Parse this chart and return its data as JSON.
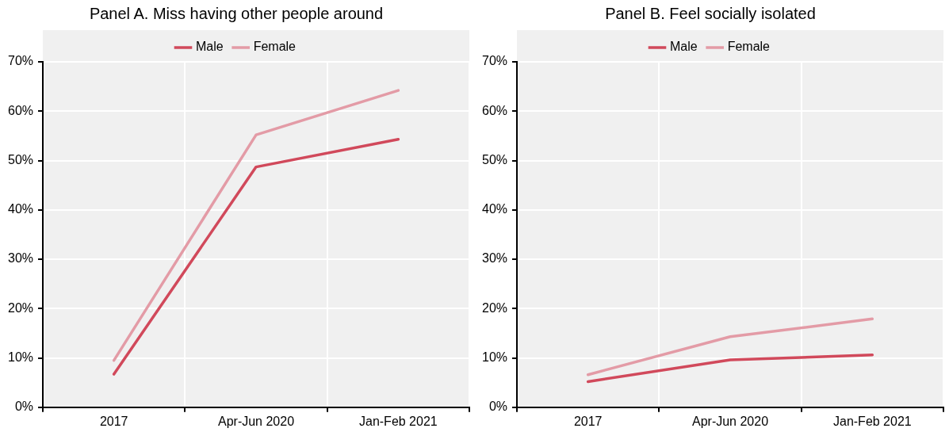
{
  "chart_data": [
    {
      "type": "line",
      "title": "Panel A. Miss having other people around",
      "categories": [
        "2017",
        "Apr-Jun 2020",
        "Jan-Feb 2021"
      ],
      "series": [
        {
          "name": "Male",
          "color": "#d1495b",
          "values": [
            6.7,
            48.7,
            54.3
          ]
        },
        {
          "name": "Female",
          "color": "#e39ba6",
          "values": [
            9.5,
            55.2,
            64.2
          ]
        }
      ],
      "ylim": [
        0,
        70
      ],
      "yticks": [
        {
          "value": 0,
          "label": "0%"
        },
        {
          "value": 10,
          "label": "10%"
        },
        {
          "value": 20,
          "label": "20%"
        },
        {
          "value": 30,
          "label": "30%"
        },
        {
          "value": 40,
          "label": "40%"
        },
        {
          "value": 50,
          "label": "50%"
        },
        {
          "value": 60,
          "label": "60%"
        },
        {
          "value": 70,
          "label": "70%"
        }
      ],
      "grid": true,
      "legend": "top",
      "marker": "none",
      "line_style": "solid"
    },
    {
      "type": "line",
      "title": "Panel B. Feel socially isolated",
      "categories": [
        "2017",
        "Apr-Jun 2020",
        "Jan-Feb 2021"
      ],
      "series": [
        {
          "name": "Male",
          "color": "#d1495b",
          "values": [
            5.2,
            9.6,
            10.6
          ]
        },
        {
          "name": "Female",
          "color": "#e39ba6",
          "values": [
            6.6,
            14.3,
            17.9
          ]
        }
      ],
      "ylim": [
        0,
        70
      ],
      "yticks": [
        {
          "value": 0,
          "label": "0%"
        },
        {
          "value": 10,
          "label": "10%"
        },
        {
          "value": 20,
          "label": "20%"
        },
        {
          "value": 30,
          "label": "30%"
        },
        {
          "value": 40,
          "label": "40%"
        },
        {
          "value": 50,
          "label": "50%"
        },
        {
          "value": 60,
          "label": "60%"
        },
        {
          "value": 70,
          "label": "70%"
        }
      ],
      "grid": true,
      "legend": "top",
      "marker": "none",
      "line_style": "solid"
    }
  ]
}
